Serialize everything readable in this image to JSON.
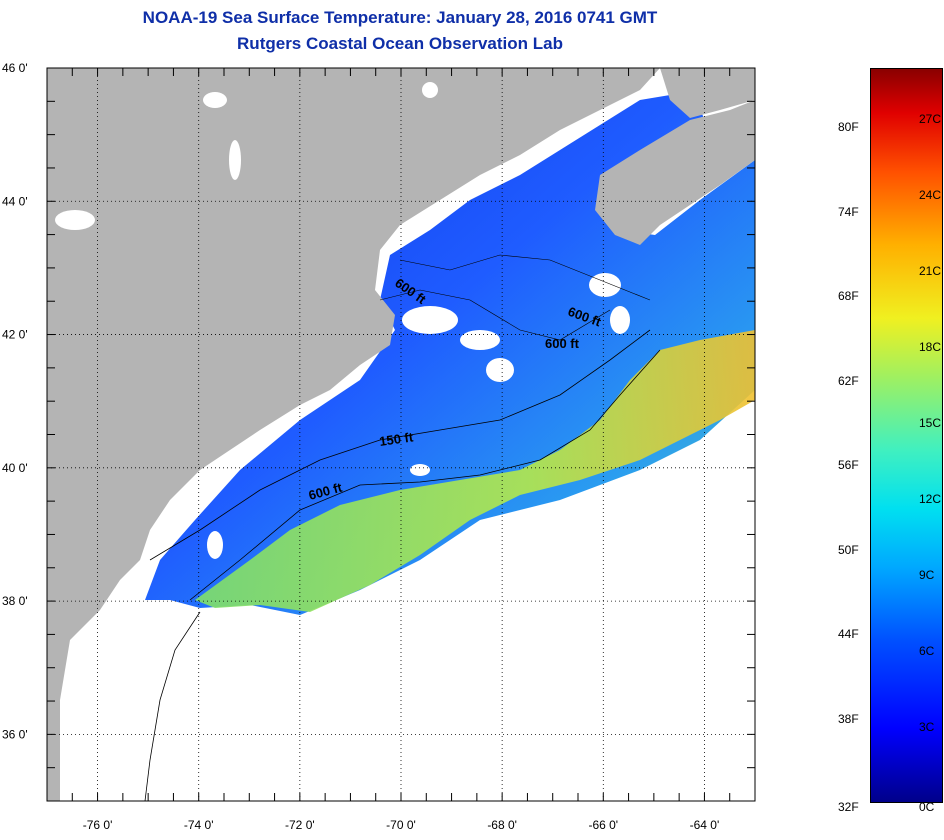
{
  "header": {
    "title": "NOAA-19 Sea Surface Temperature:  January 28, 2016 0741 GMT",
    "subtitle": "Rutgers Coastal Ocean Observation Lab"
  },
  "map": {
    "lat_labels": [
      "46 0'",
      "44 0'",
      "42 0'",
      "40 0'",
      "38 0'",
      "36 0'"
    ],
    "lat_values": [
      46,
      44,
      42,
      40,
      38,
      36
    ],
    "lon_labels": [
      "-76 0'",
      "-74 0'",
      "-72 0'",
      "-70 0'",
      "-68 0'",
      "-66 0'",
      "-64 0'"
    ],
    "lon_values": [
      -76,
      -74,
      -72,
      -70,
      -68,
      -66,
      -64
    ],
    "lat_range": [
      35.0,
      46.0
    ],
    "lon_range": [
      -77.0,
      -63.0
    ],
    "contour_labels": [
      "600 ft",
      "600 ft",
      "600 ft",
      "150 ft",
      "600 ft"
    ],
    "colors": {
      "land": "#b4b4b4",
      "cloud": "#ffffff",
      "ocean_cold": "#1a3cff",
      "ocean_warm": "#9ee04a"
    }
  },
  "colorbar": {
    "fahrenheit_labels": [
      "80F",
      "74F",
      "68F",
      "62F",
      "56F",
      "50F",
      "44F",
      "38F",
      "32F"
    ],
    "fahrenheit_values": [
      80,
      74,
      68,
      62,
      56,
      50,
      44,
      38,
      32
    ],
    "celsius_labels": [
      "27C",
      "24C",
      "21C",
      "18C",
      "15C",
      "12C",
      "9C",
      "6C",
      "3C",
      "0C"
    ],
    "celsius_values": [
      27,
      24,
      21,
      18,
      15,
      12,
      9,
      6,
      3,
      0
    ],
    "range_c": [
      0,
      29
    ]
  }
}
